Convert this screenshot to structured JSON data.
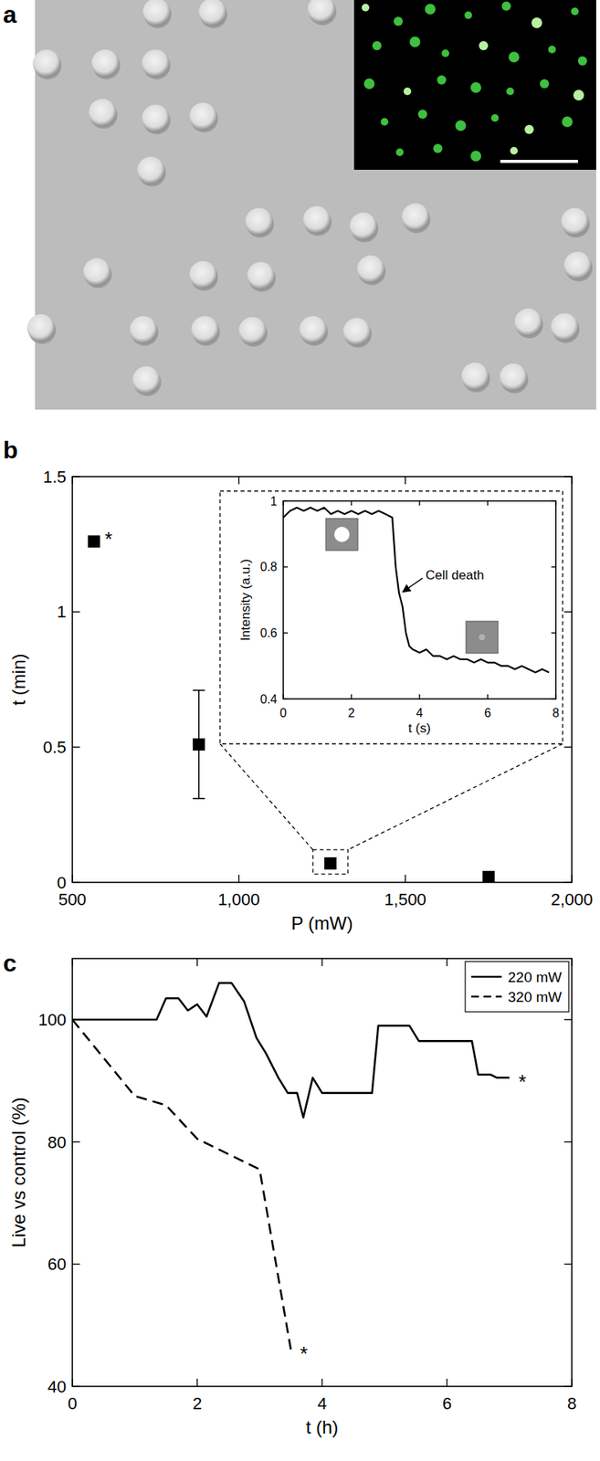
{
  "chart_data": [
    {
      "type": "image",
      "title": "a"
    },
    {
      "type": "scatter",
      "title": "b",
      "x_label": "P (mW)",
      "y_label": "t (min)",
      "x": [
        565,
        880,
        1275,
        1750
      ],
      "values": [
        1.26,
        0.51,
        0.07,
        0.02
      ],
      "errors": [
        null,
        0.2,
        0.02,
        null
      ],
      "color": "#000000",
      "marker": "square",
      "xlim": [
        500,
        2000
      ],
      "ylim": [
        0,
        1.5
      ],
      "xticks": [
        500,
        {
          "value": 1000,
          "label": "1,000"
        },
        {
          "value": 1500,
          "label": "1,500"
        },
        {
          "value": 2000,
          "label": "2,000"
        }
      ],
      "yticks": [
        0,
        0.5,
        1,
        1.5
      ],
      "annotations": [
        {
          "text": "*",
          "x": 565,
          "y": 1.26
        }
      ],
      "inset": {
        "type": "line",
        "x_label": "t (s)",
        "y_label": "Intensity (a.u.)",
        "color": "#000000",
        "line_style": "solid",
        "x": [
          0,
          0.2,
          0.4,
          0.6,
          0.8,
          1.0,
          1.2,
          1.4,
          1.6,
          1.8,
          2.0,
          2.2,
          2.4,
          2.6,
          2.8,
          3.0,
          3.2,
          3.3,
          3.4,
          3.5,
          3.6,
          3.7,
          3.8,
          4.0,
          4.2,
          4.4,
          4.6,
          4.8,
          5.0,
          5.2,
          5.4,
          5.6,
          5.8,
          6.0,
          6.2,
          6.4,
          6.6,
          6.8,
          7.0,
          7.2,
          7.4,
          7.6,
          7.8
        ],
        "values": [
          0.95,
          0.97,
          0.98,
          0.97,
          0.98,
          0.97,
          0.98,
          0.96,
          0.97,
          0.96,
          0.97,
          0.96,
          0.97,
          0.96,
          0.97,
          0.96,
          0.95,
          0.8,
          0.72,
          0.68,
          0.6,
          0.56,
          0.55,
          0.54,
          0.55,
          0.53,
          0.53,
          0.52,
          0.53,
          0.52,
          0.52,
          0.51,
          0.52,
          0.51,
          0.51,
          0.5,
          0.5,
          0.49,
          0.5,
          0.49,
          0.48,
          0.49,
          0.48
        ],
        "xlim": [
          0,
          8
        ],
        "ylim": [
          0.4,
          1
        ],
        "xticks": [
          0,
          2,
          4,
          6,
          8
        ],
        "yticks": [
          0.4,
          0.6,
          0.8,
          1
        ],
        "annotations": [
          {
            "text": "Cell death",
            "x": 3.42,
            "y": 0.72
          }
        ]
      }
    },
    {
      "type": "line",
      "title": "c",
      "x_label": "t (h)",
      "y_label": "Live vs control (%)",
      "xlim": [
        0,
        8
      ],
      "ylim": [
        40,
        110
      ],
      "xticks": [
        0,
        2,
        4,
        6,
        8
      ],
      "yticks": [
        40,
        60,
        80,
        100
      ],
      "legend": "upper right",
      "series": [
        {
          "name": "220 mW",
          "color": "#000000",
          "line_style": "solid",
          "x": [
            0,
            1.35,
            1.5,
            1.7,
            1.85,
            2.0,
            2.15,
            2.35,
            2.55,
            2.75,
            2.95,
            3.1,
            3.3,
            3.45,
            3.6,
            3.7,
            3.85,
            4.0,
            4.8,
            4.9,
            5.4,
            5.55,
            6.4,
            6.5,
            6.7,
            6.8,
            7.0
          ],
          "values": [
            100,
            100,
            103.5,
            103.5,
            101.5,
            102.5,
            100.5,
            106,
            106,
            103,
            97,
            94.5,
            90.5,
            88,
            88,
            84,
            90.5,
            88,
            88,
            99,
            99,
            96.5,
            96.5,
            91,
            91,
            90.5,
            90.5
          ]
        },
        {
          "name": "320 mW",
          "color": "#000000",
          "line_style": "dashed",
          "x": [
            0,
            1,
            1.5,
            2,
            2.5,
            3,
            3.5
          ],
          "values": [
            100,
            87.5,
            86,
            80.5,
            78,
            75.5,
            46
          ]
        }
      ],
      "annotations": [
        {
          "text": "*",
          "x": 7.0,
          "y": 90.5
        },
        {
          "text": "*",
          "x": 3.5,
          "y": 46
        }
      ]
    }
  ]
}
